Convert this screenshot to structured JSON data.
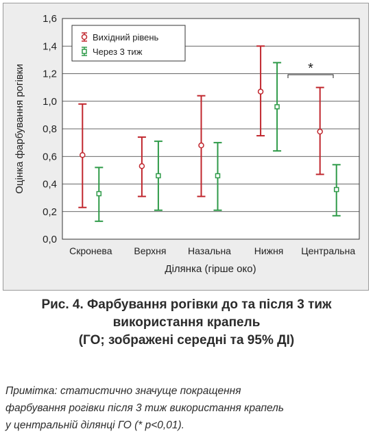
{
  "chart_data": {
    "type": "errorbar",
    "ylabel": "Оцінка фарбування рогівки",
    "xlabel": "Ділянка (гірше око)",
    "ylim": [
      0,
      1.6
    ],
    "yticks": [
      "0,0",
      "0,2",
      "0,4",
      "0,6",
      "0,8",
      "1,0",
      "1,2",
      "1,4",
      "1,6"
    ],
    "grid": "horizontal",
    "legend_position": "top-left",
    "categories": [
      "Скронева",
      "Верхня",
      "Назальна",
      "Нижня",
      "Центральна"
    ],
    "series": [
      {
        "name": "Вихідний рівень",
        "color": "#c0262d",
        "marker": "circle",
        "mean": [
          0.61,
          0.53,
          0.68,
          1.07,
          0.78
        ],
        "lower": [
          0.23,
          0.31,
          0.31,
          0.75,
          0.47
        ],
        "upper": [
          0.98,
          0.74,
          1.04,
          1.4,
          1.1
        ]
      },
      {
        "name": "Через 3 тиж",
        "color": "#2e9a48",
        "marker": "square",
        "mean": [
          0.33,
          0.46,
          0.46,
          0.96,
          0.36
        ],
        "lower": [
          0.13,
          0.21,
          0.21,
          0.64,
          0.17
        ],
        "upper": [
          0.52,
          0.71,
          0.7,
          1.28,
          0.54
        ]
      }
    ],
    "annotation": {
      "text": "*",
      "category": "Центральна"
    }
  },
  "caption": {
    "line1": "Рис. 4. Фарбування рогівки до та після 3 тиж",
    "line2": "використання крапель",
    "line3": "(ГО; зображені середні та 95% ДІ)"
  },
  "note": {
    "line1": "Примітка: статистично значуще покращення",
    "line2": "фарбування рогівки після 3 тиж використання крапель",
    "line3": "у центральній ділянці ГО (* p<0,01)."
  }
}
